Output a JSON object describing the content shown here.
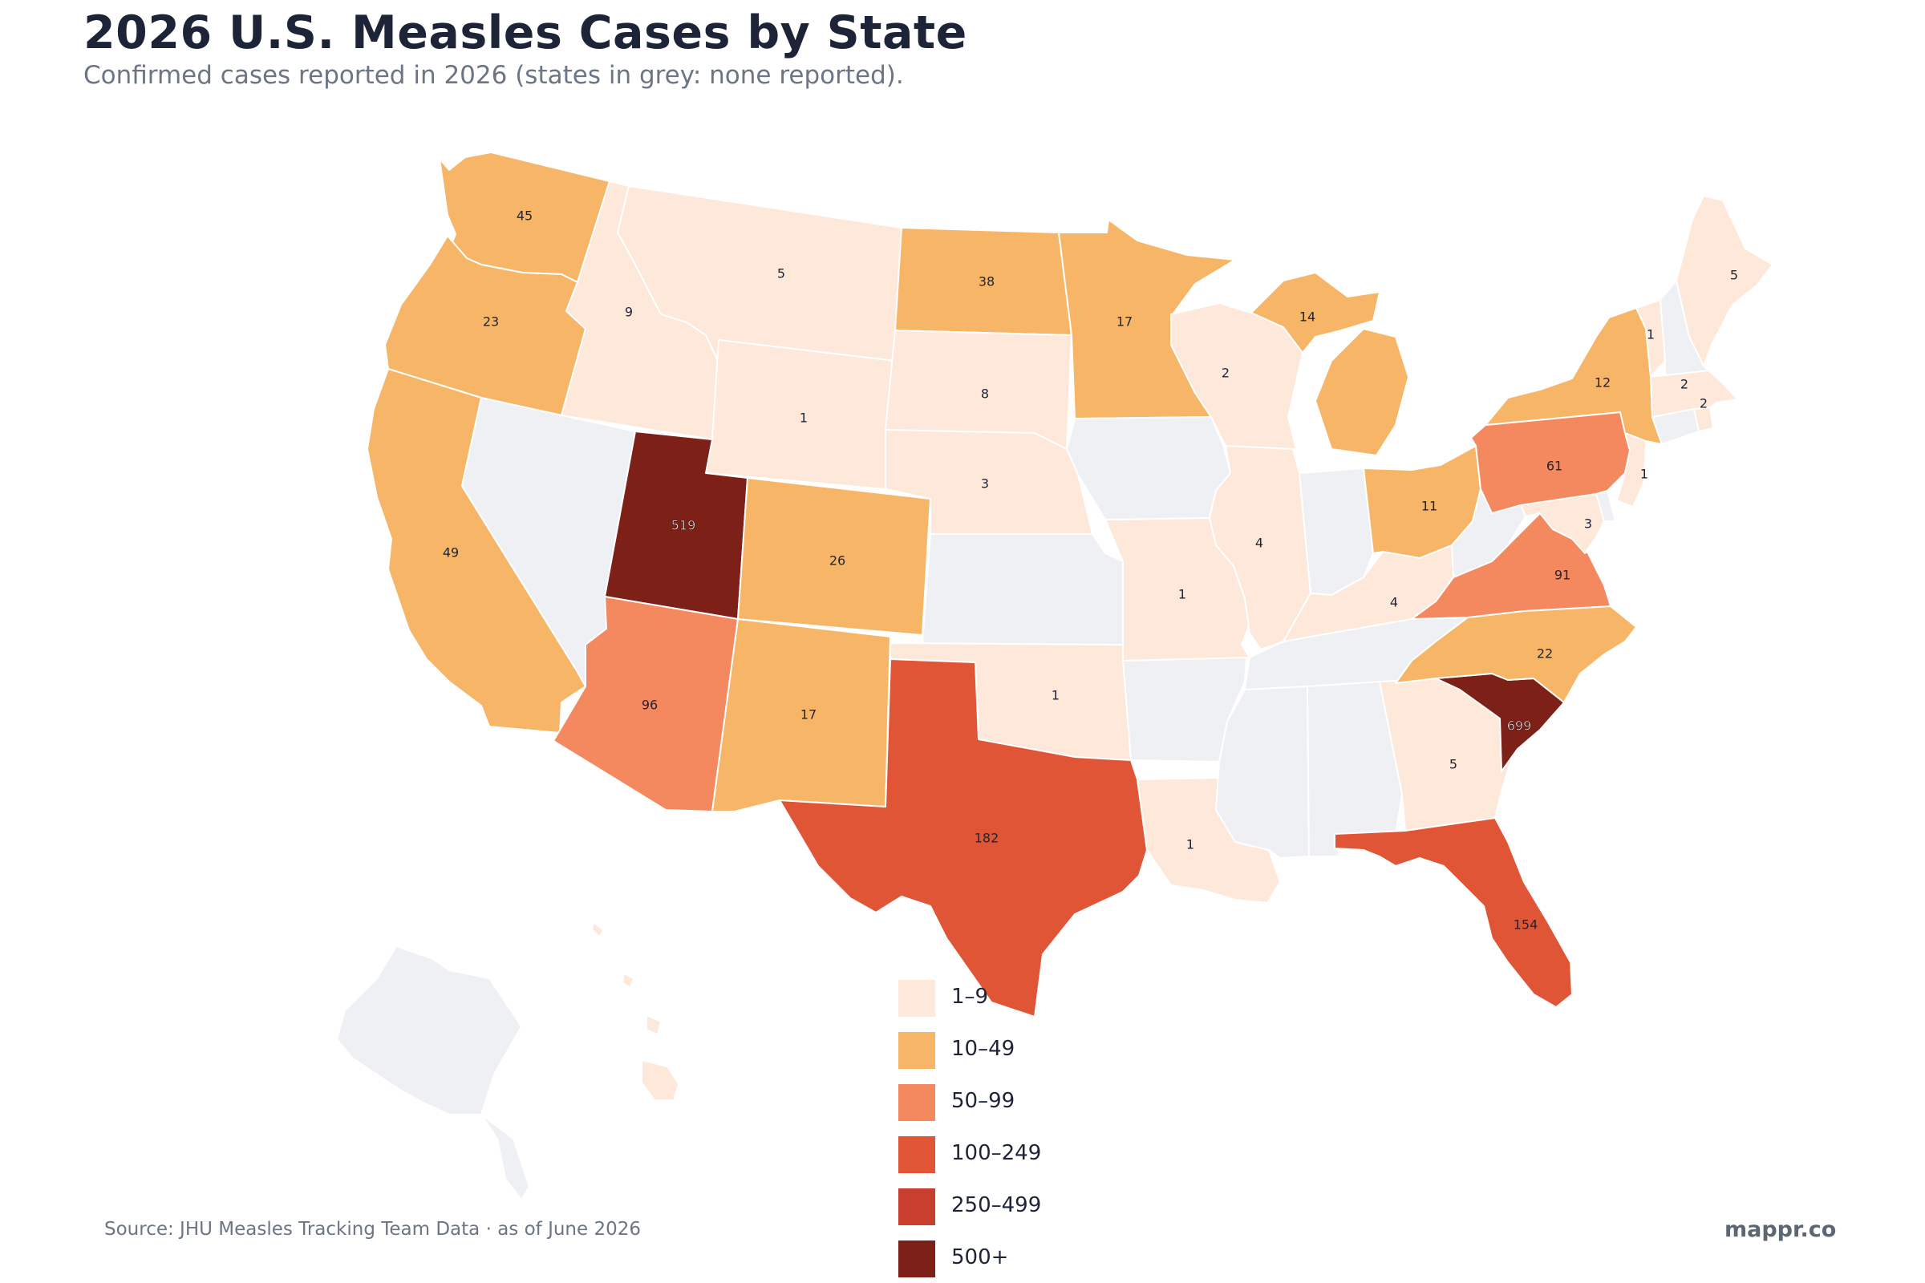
{
  "title": "2026 U.S. Measles Cases by State",
  "subtitle": "Confirmed cases reported in 2026 (states in grey: none reported).",
  "source": "Source: JHU Measles Tracking Team Data · as of June 2026",
  "brand": "mappr.co",
  "colors": {
    "none": "#eff0f3",
    "b1": "#fde8da",
    "b2": "#f6b567",
    "b3": "#f4895f",
    "b4": "#e15537",
    "b5": "#c83f2e",
    "b6": "#7d2118"
  },
  "legend": [
    {
      "label": "1–9",
      "color": "#fde8da"
    },
    {
      "label": "10–49",
      "color": "#f6b567"
    },
    {
      "label": "50–99",
      "color": "#f4895f"
    },
    {
      "label": "100–249",
      "color": "#e15537"
    },
    {
      "label": "250–499",
      "color": "#c83f2e"
    },
    {
      "label": "500+",
      "color": "#7d2118"
    }
  ],
  "states": [
    {
      "id": "WA",
      "value": 45,
      "label": "45"
    },
    {
      "id": "OR",
      "value": 23,
      "label": "23"
    },
    {
      "id": "CA",
      "value": 49,
      "label": "49"
    },
    {
      "id": "ID",
      "value": 9,
      "label": "9"
    },
    {
      "id": "NV",
      "value": 0,
      "label": ""
    },
    {
      "id": "MT",
      "value": 5,
      "label": "5"
    },
    {
      "id": "WY",
      "value": 1,
      "label": "1"
    },
    {
      "id": "UT",
      "value": 519,
      "label": "519"
    },
    {
      "id": "AZ",
      "value": 96,
      "label": "96"
    },
    {
      "id": "CO",
      "value": 26,
      "label": "26"
    },
    {
      "id": "NM",
      "value": 17,
      "label": "17"
    },
    {
      "id": "ND",
      "value": 38,
      "label": "38"
    },
    {
      "id": "SD",
      "value": 8,
      "label": "8"
    },
    {
      "id": "NE",
      "value": 3,
      "label": "3"
    },
    {
      "id": "KS",
      "value": 0,
      "label": ""
    },
    {
      "id": "OK",
      "value": 1,
      "label": "1"
    },
    {
      "id": "TX",
      "value": 182,
      "label": "182"
    },
    {
      "id": "MN",
      "value": 17,
      "label": "17"
    },
    {
      "id": "IA",
      "value": 0,
      "label": ""
    },
    {
      "id": "MO",
      "value": 1,
      "label": "1"
    },
    {
      "id": "AR",
      "value": 0,
      "label": ""
    },
    {
      "id": "LA",
      "value": 1,
      "label": "1"
    },
    {
      "id": "WI",
      "value": 2,
      "label": "2"
    },
    {
      "id": "IL",
      "value": 4,
      "label": "4"
    },
    {
      "id": "MI",
      "value": 14,
      "label": "14"
    },
    {
      "id": "IN",
      "value": 0,
      "label": ""
    },
    {
      "id": "OH",
      "value": 11,
      "label": "11"
    },
    {
      "id": "KY",
      "value": 4,
      "label": "4"
    },
    {
      "id": "TN",
      "value": 0,
      "label": ""
    },
    {
      "id": "MS",
      "value": 0,
      "label": ""
    },
    {
      "id": "AL",
      "value": 0,
      "label": ""
    },
    {
      "id": "GA",
      "value": 5,
      "label": "5"
    },
    {
      "id": "FL",
      "value": 154,
      "label": "154"
    },
    {
      "id": "SC",
      "value": 699,
      "label": "699"
    },
    {
      "id": "NC",
      "value": 22,
      "label": "22"
    },
    {
      "id": "VA",
      "value": 91,
      "label": "91"
    },
    {
      "id": "WV",
      "value": 0,
      "label": ""
    },
    {
      "id": "MD",
      "value": 3,
      "label": "3"
    },
    {
      "id": "DE",
      "value": 0,
      "label": ""
    },
    {
      "id": "NJ",
      "value": 1,
      "label": "1"
    },
    {
      "id": "PA",
      "value": 61,
      "label": "61"
    },
    {
      "id": "NY",
      "value": 12,
      "label": "12"
    },
    {
      "id": "CT",
      "value": 0,
      "label": ""
    },
    {
      "id": "RI",
      "value": 2,
      "label": "2"
    },
    {
      "id": "MA",
      "value": 2,
      "label": "2"
    },
    {
      "id": "VT",
      "value": 1,
      "label": "1"
    },
    {
      "id": "NH",
      "value": 0,
      "label": ""
    },
    {
      "id": "ME",
      "value": 5,
      "label": "5"
    },
    {
      "id": "AK",
      "value": 0,
      "label": ""
    },
    {
      "id": "HI",
      "value": 1,
      "label": ""
    }
  ]
}
